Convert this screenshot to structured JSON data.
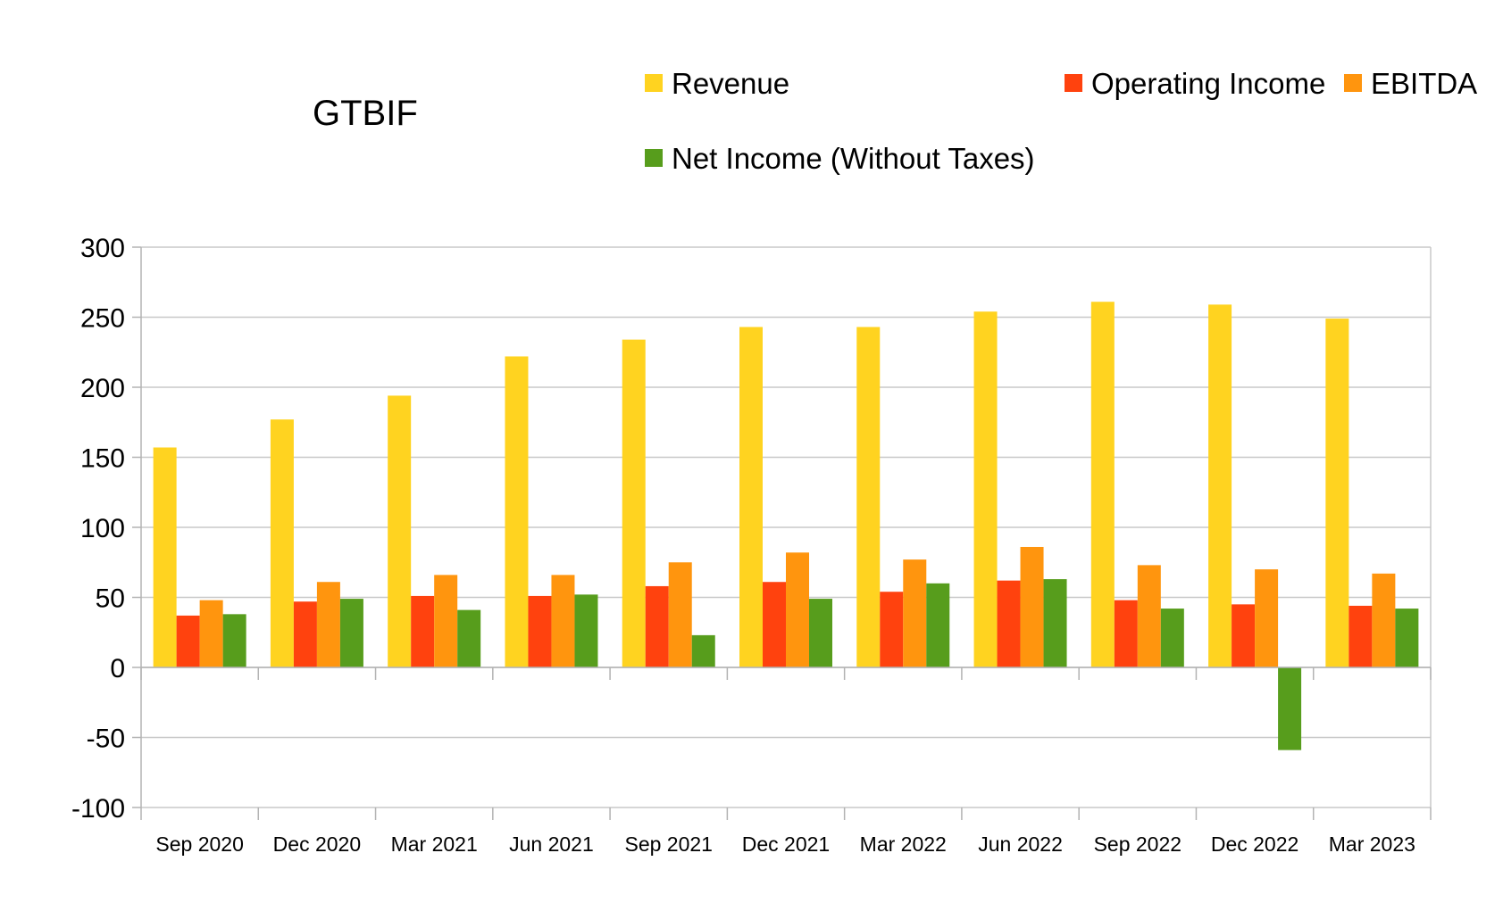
{
  "chart_data": {
    "type": "bar",
    "title": "GTBIF",
    "xlabel": "",
    "ylabel": "",
    "ylim": [
      -100,
      300
    ],
    "yticks": [
      300,
      250,
      200,
      150,
      100,
      50,
      0,
      -50,
      -100
    ],
    "grid": true,
    "legend_position": "top-right",
    "categories": [
      "Sep 2020",
      "Dec 2020",
      "Mar 2021",
      "Jun 2021",
      "Sep 2021",
      "Dec 2021",
      "Mar 2022",
      "Jun 2022",
      "Sep 2022",
      "Dec 2022",
      "Mar 2023"
    ],
    "series": [
      {
        "name": "Revenue",
        "color": "#ffd320",
        "values": [
          157,
          177,
          194,
          222,
          234,
          243,
          243,
          254,
          261,
          259,
          249
        ]
      },
      {
        "name": "Operating Income",
        "color": "#ff420e",
        "values": [
          37,
          47,
          51,
          51,
          58,
          61,
          54,
          62,
          48,
          45,
          44
        ]
      },
      {
        "name": "EBITDA",
        "color": "#ff950e",
        "values": [
          48,
          61,
          66,
          66,
          75,
          82,
          77,
          86,
          73,
          70,
          67
        ]
      },
      {
        "name": "Net Income (Without Taxes)",
        "color": "#579d1c",
        "values": [
          38,
          49,
          41,
          52,
          23,
          49,
          60,
          63,
          42,
          -59,
          42
        ]
      }
    ]
  }
}
